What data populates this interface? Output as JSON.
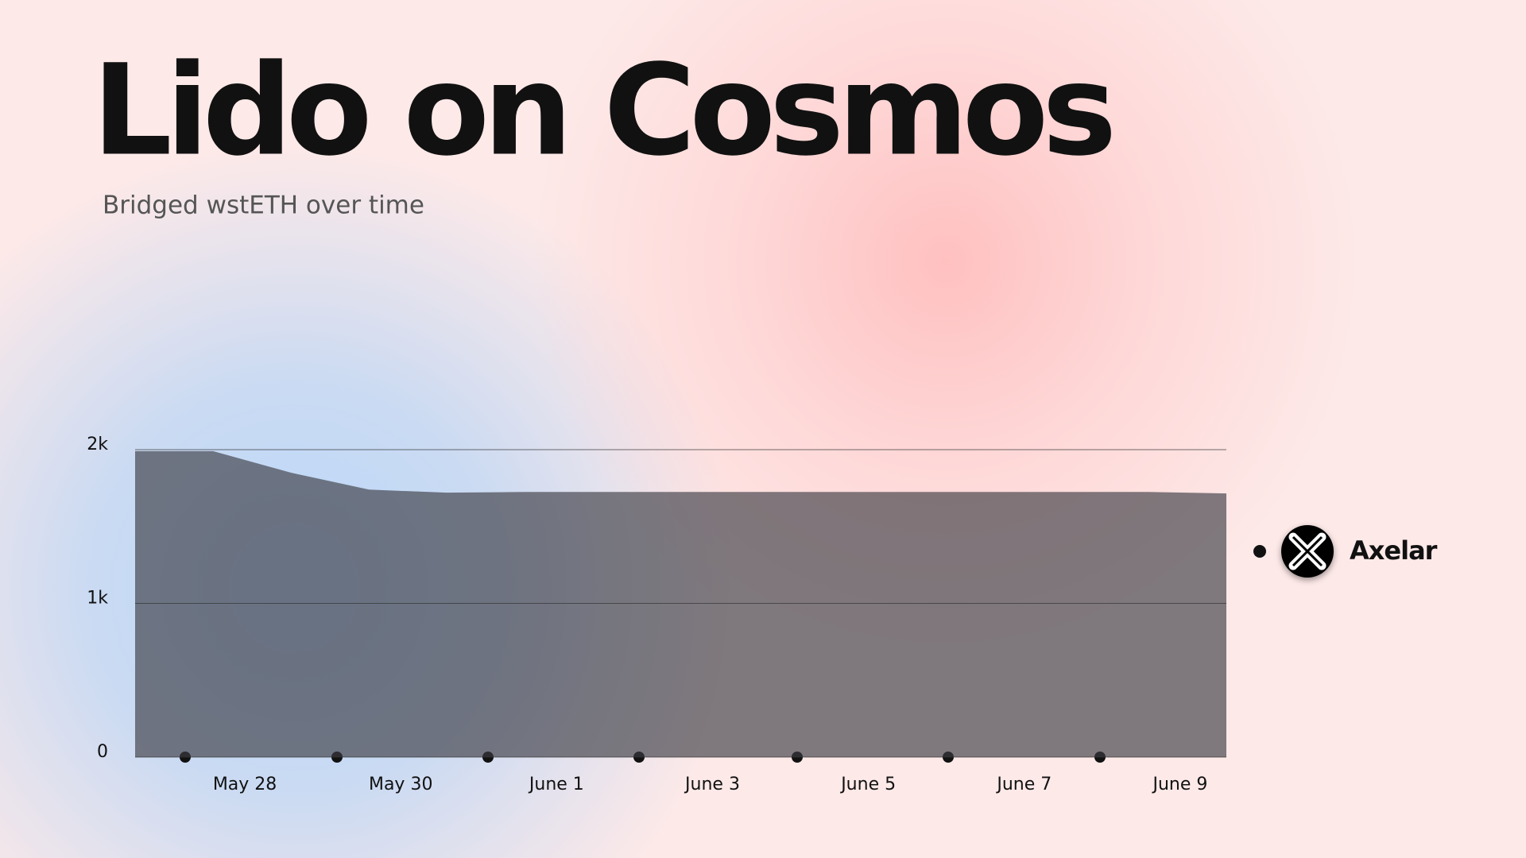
{
  "chart_data": {
    "type": "area",
    "title": "Lido on Cosmos",
    "subtitle": "Bridged wstETH over time",
    "categories": [
      null,
      "May 28",
      null,
      "May 30",
      null,
      "June 1",
      null,
      "June 3",
      null,
      "June 5",
      null,
      "June 7",
      null,
      "June 9",
      null
    ],
    "series": [
      {
        "name": "Axelar",
        "color": "#3c3c44",
        "values": [
          1990,
          1990,
          1850,
          1740,
          1720,
          1725,
          1725,
          1725,
          1725,
          1725,
          1725,
          1725,
          1725,
          1725,
          1715
        ]
      }
    ],
    "ylim": [
      0,
      2000
    ],
    "yticks": [
      0,
      {
        "value": 1000,
        "label": "1k"
      },
      {
        "value": 2000,
        "label": "2k"
      }
    ],
    "grid": true
  }
}
